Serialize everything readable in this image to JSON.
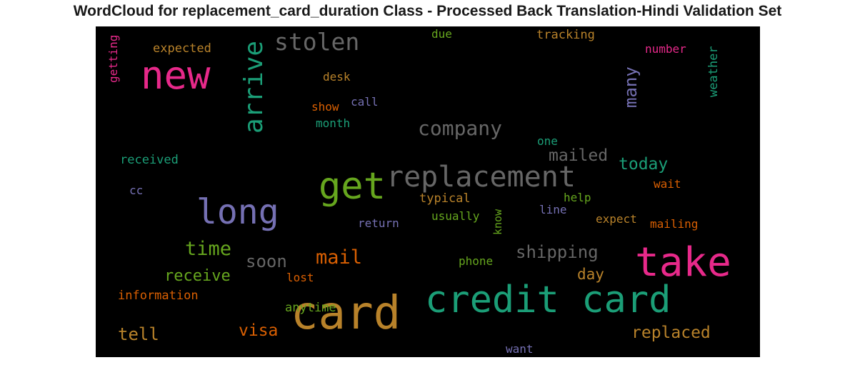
{
  "title": "WordCloud for replacement_card_duration Class - Processed Back Translation-Hindi Validation Set",
  "chart_data": {
    "type": "wordcloud",
    "background": "#000000",
    "colormap": "Dark2",
    "words": [
      {
        "text": "card",
        "color": "#b8822a"
      },
      {
        "text": "credit card",
        "color": "#1b9e77"
      },
      {
        "text": "take",
        "color": "#e7298a"
      },
      {
        "text": "new",
        "color": "#e7298a"
      },
      {
        "text": "long",
        "color": "#7570b3"
      },
      {
        "text": "get",
        "color": "#66a61e"
      },
      {
        "text": "replacement",
        "color": "#666666"
      },
      {
        "text": "arrive",
        "color": "#1b9e77"
      },
      {
        "text": "stolen",
        "color": "#666666"
      },
      {
        "text": "company",
        "color": "#666666"
      },
      {
        "text": "time",
        "color": "#66a61e"
      },
      {
        "text": "mail",
        "color": "#d95f02"
      },
      {
        "text": "receive",
        "color": "#66a61e"
      },
      {
        "text": "soon",
        "color": "#666666"
      },
      {
        "text": "shipping",
        "color": "#666666"
      },
      {
        "text": "replaced",
        "color": "#b8822a"
      },
      {
        "text": "mailed",
        "color": "#666666"
      },
      {
        "text": "today",
        "color": "#1b9e77"
      },
      {
        "text": "many",
        "color": "#7570b3"
      },
      {
        "text": "tell",
        "color": "#b8822a"
      },
      {
        "text": "visa",
        "color": "#d95f02"
      },
      {
        "text": "day",
        "color": "#b8822a"
      },
      {
        "text": "expected",
        "color": "#b8822a"
      },
      {
        "text": "tracking",
        "color": "#b8822a"
      },
      {
        "text": "number",
        "color": "#e7298a"
      },
      {
        "text": "weather",
        "color": "#1b9e77"
      },
      {
        "text": "getting",
        "color": "#e7298a"
      },
      {
        "text": "due",
        "color": "#66a61e"
      },
      {
        "text": "desk",
        "color": "#b8822a"
      },
      {
        "text": "show",
        "color": "#d95f02"
      },
      {
        "text": "call",
        "color": "#7570b3"
      },
      {
        "text": "month",
        "color": "#1b9e77"
      },
      {
        "text": "one",
        "color": "#1b9e77"
      },
      {
        "text": "received",
        "color": "#1b9e77"
      },
      {
        "text": "cc",
        "color": "#7570b3"
      },
      {
        "text": "typical",
        "color": "#b8822a"
      },
      {
        "text": "usually",
        "color": "#66a61e"
      },
      {
        "text": "know",
        "color": "#66a61e"
      },
      {
        "text": "help",
        "color": "#66a61e"
      },
      {
        "text": "line",
        "color": "#7570b3"
      },
      {
        "text": "wait",
        "color": "#d95f02"
      },
      {
        "text": "expect",
        "color": "#b8822a"
      },
      {
        "text": "mailing",
        "color": "#d95f02"
      },
      {
        "text": "return",
        "color": "#7570b3"
      },
      {
        "text": "phone",
        "color": "#66a61e"
      },
      {
        "text": "lost",
        "color": "#d95f02"
      },
      {
        "text": "information",
        "color": "#d95f02"
      },
      {
        "text": "anytime",
        "color": "#66a61e"
      },
      {
        "text": "want",
        "color": "#7570b3"
      }
    ]
  }
}
